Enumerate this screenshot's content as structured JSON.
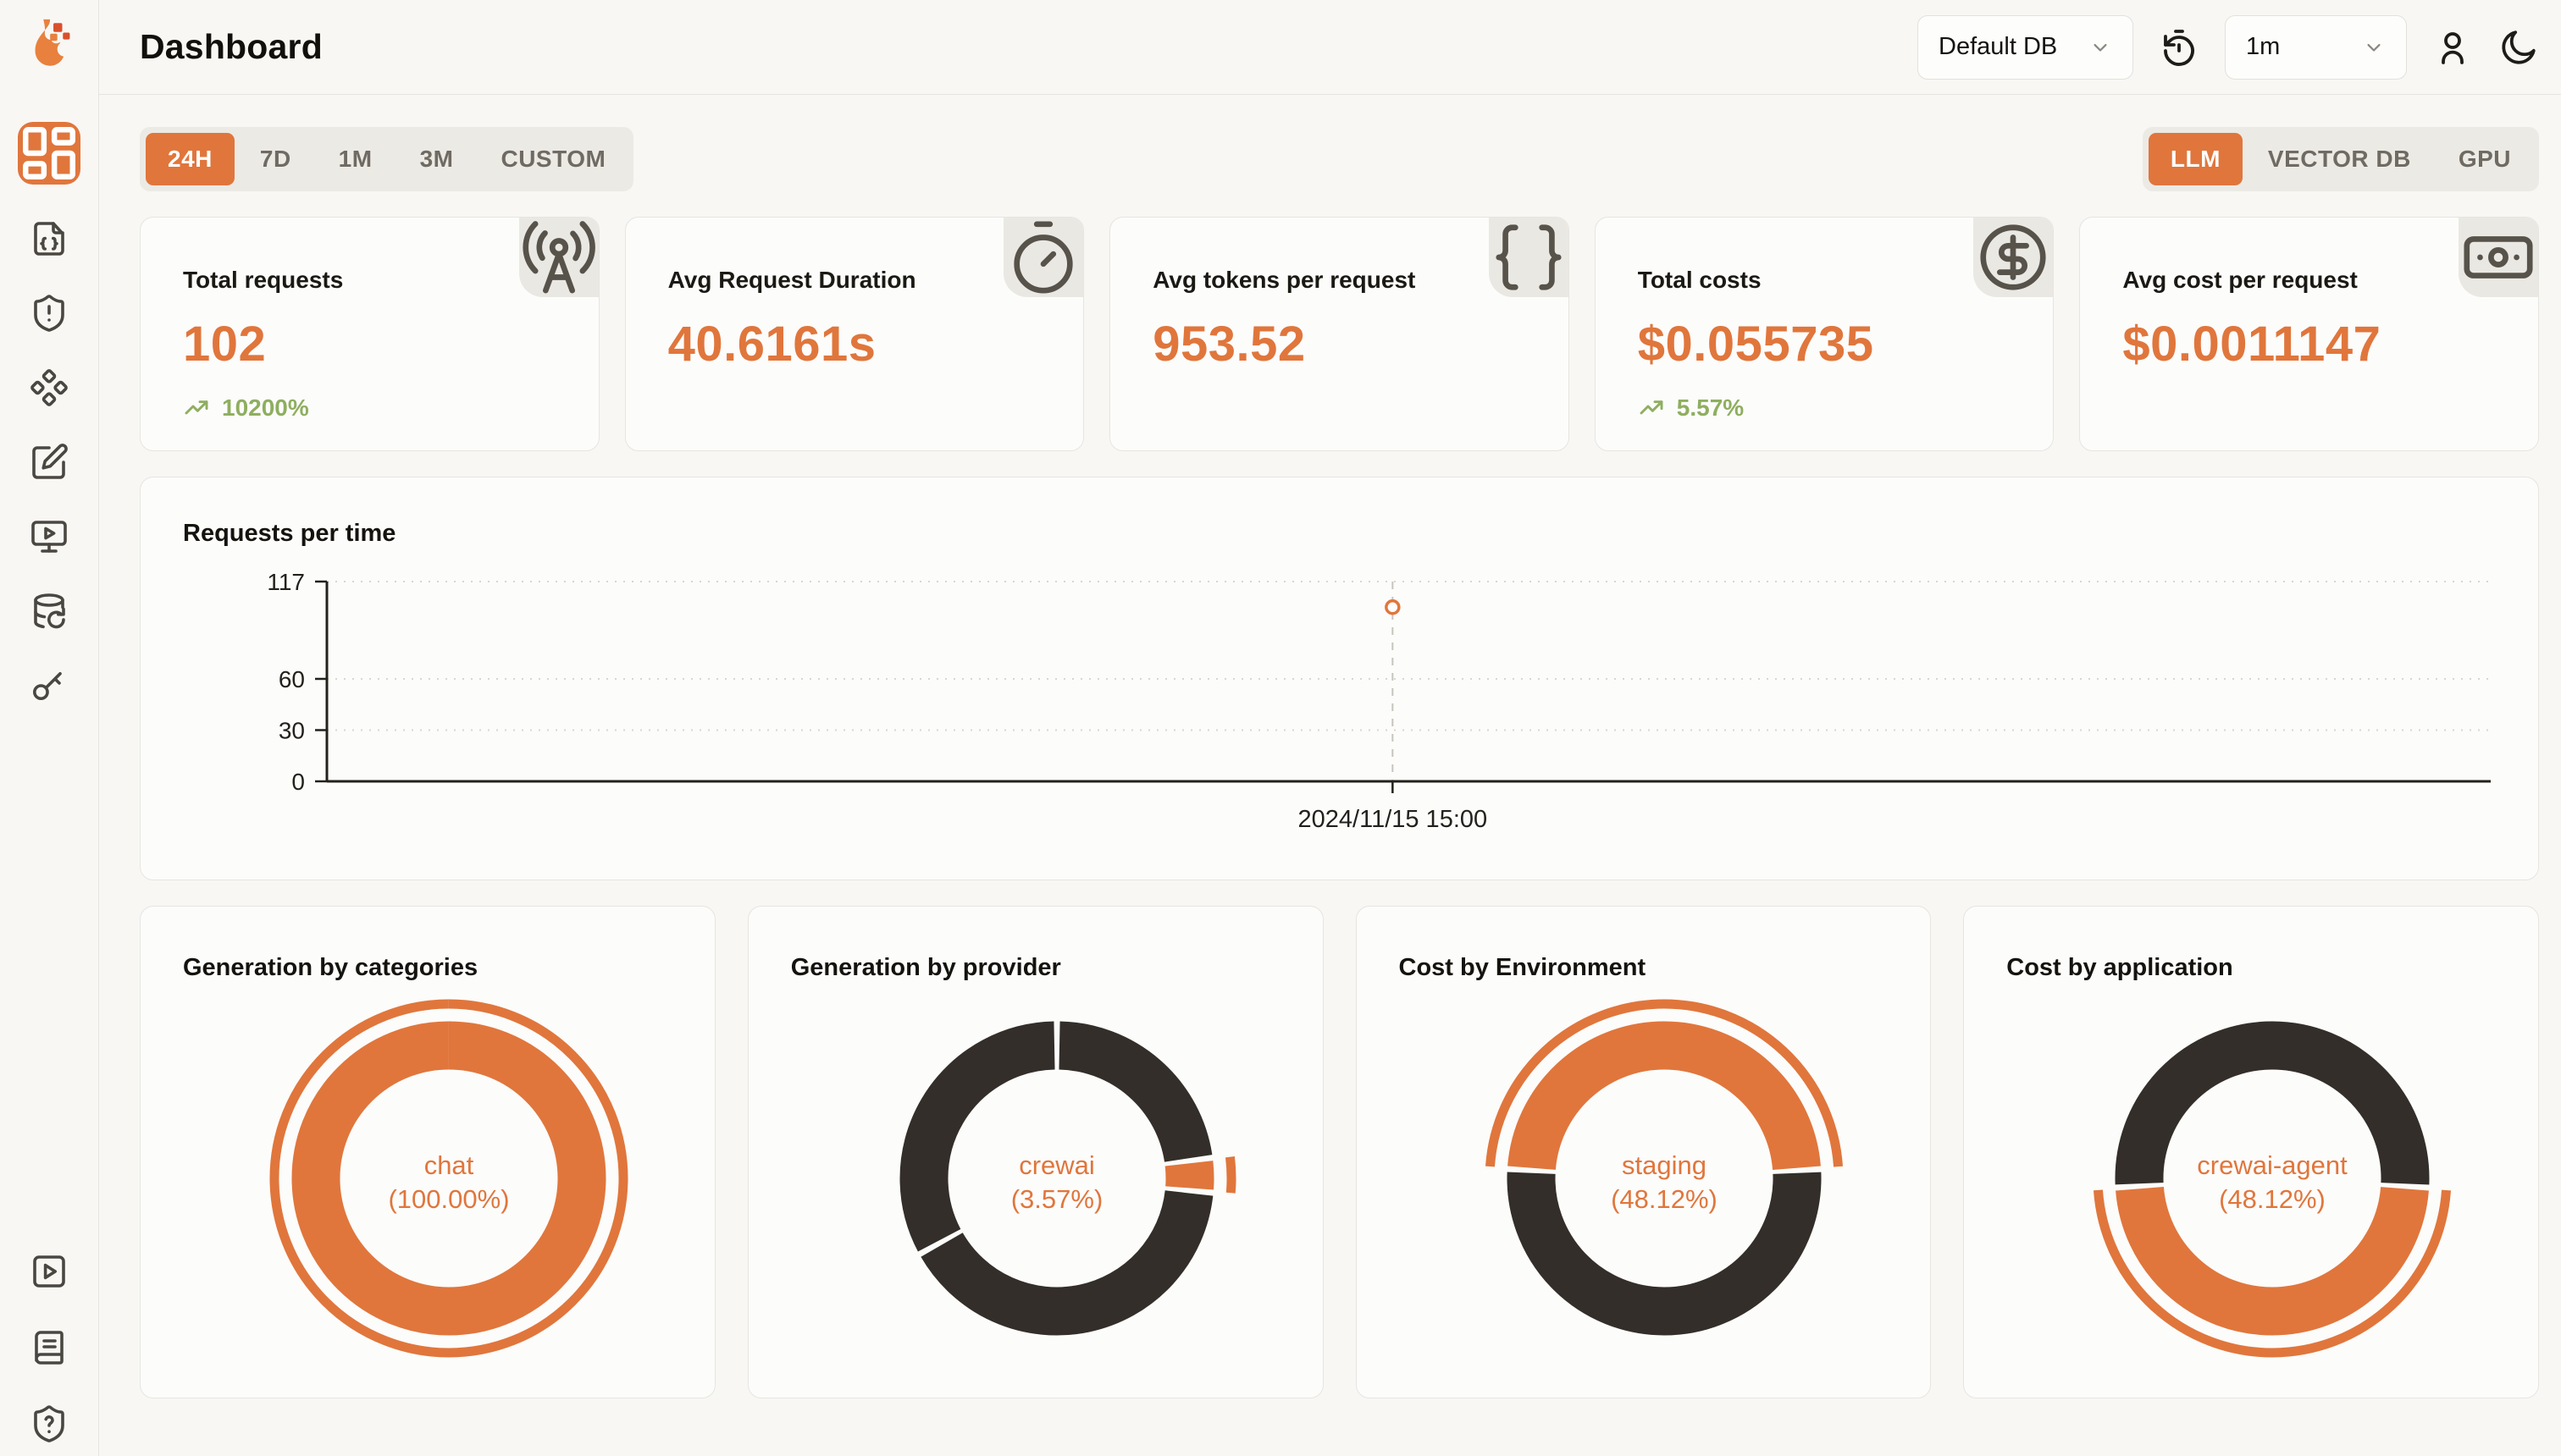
{
  "app": {
    "accent": "#E0763C",
    "dark_slice": "#332E29",
    "trend_green": "#8FAE60",
    "page_bg": "#F8F7F4",
    "card_bg": "#FCFCFB"
  },
  "header": {
    "title": "Dashboard",
    "db_select": {
      "value": "Default DB"
    },
    "interval_select": {
      "value": "1m"
    },
    "icons": [
      "timer-reset",
      "user",
      "moon"
    ]
  },
  "sidebar": {
    "logo": "flame-logo",
    "top_items": [
      {
        "icon": "layout-dashboard",
        "active": true
      },
      {
        "icon": "file-code"
      },
      {
        "icon": "shield-alert"
      },
      {
        "icon": "diamonds"
      },
      {
        "icon": "square-pen"
      },
      {
        "icon": "monitor-play"
      },
      {
        "icon": "database-restore"
      },
      {
        "icon": "key"
      }
    ],
    "bottom_items": [
      {
        "icon": "square-play"
      },
      {
        "icon": "book"
      },
      {
        "icon": "shield-question"
      }
    ]
  },
  "time_range_tabs": {
    "active": "24H",
    "items": [
      "24H",
      "7D",
      "1M",
      "3M",
      "CUSTOM"
    ]
  },
  "signal_tabs": {
    "active": "LLM",
    "items": [
      "LLM",
      "VECTOR DB",
      "GPU"
    ]
  },
  "stat_cards": [
    {
      "label": "Total requests",
      "value": "102",
      "trend": "10200%",
      "icon": "radio-tower"
    },
    {
      "label": "Avg Request Duration",
      "value": "40.6161s",
      "trend": "",
      "icon": "timer"
    },
    {
      "label": "Avg tokens per request",
      "value": "953.52",
      "trend": "",
      "icon": "braces"
    },
    {
      "label": "Total costs",
      "value": "$0.055735",
      "trend": "5.57%",
      "icon": "circle-dollar"
    },
    {
      "label": "Avg cost per request",
      "value": "$0.0011147",
      "trend": "",
      "icon": "banknote"
    }
  ],
  "chart_data": [
    {
      "id": "requests-per-time",
      "type": "line",
      "title": "Requests per time",
      "x": [
        "2024/11/15 15:00"
      ],
      "series": [
        {
          "name": "Requests",
          "values": [
            102
          ]
        }
      ],
      "ylim": [
        0,
        117
      ],
      "yticks": [
        0,
        30,
        60,
        117
      ],
      "grid": "dotted",
      "point_style": "hollow-circle",
      "point_x_fraction": 0.4925
    },
    {
      "id": "generation-by-categories",
      "type": "pie",
      "title": "Generation by categories",
      "center": {
        "line1": "chat",
        "line2": "(100.00%)"
      },
      "start_deg": 0,
      "slices": [
        {
          "label": "chat",
          "pct": 100,
          "color": "#E0763C",
          "highlight": true
        }
      ]
    },
    {
      "id": "generation-by-provider",
      "type": "pie",
      "title": "Generation by provider",
      "center": {
        "line1": "crewai",
        "line2": "(3.57%)"
      },
      "start_deg": 0,
      "slices": [
        {
          "label": "",
          "pct": 22.9,
          "color": "#332E29",
          "highlight": false
        },
        {
          "label": "crewai",
          "pct": 3.57,
          "color": "#E0763C",
          "highlight": true
        },
        {
          "label": "",
          "pct": 40.5,
          "color": "#332E29",
          "highlight": false
        },
        {
          "label": "",
          "pct": 33.03,
          "color": "#332E29",
          "highlight": false
        }
      ]
    },
    {
      "id": "cost-by-environment",
      "type": "pie",
      "title": "Cost by Environment",
      "center": {
        "line1": "staging",
        "line2": "(48.12%)"
      },
      "start_deg": 273.4,
      "slices": [
        {
          "label": "staging",
          "pct": 48.12,
          "color": "#E0763C",
          "highlight": true
        },
        {
          "label": "",
          "pct": 51.88,
          "color": "#332E29",
          "highlight": false
        }
      ]
    },
    {
      "id": "cost-by-application",
      "type": "pie",
      "title": "Cost by application",
      "center": {
        "line1": "crewai-agent",
        "line2": "(48.12%)"
      },
      "start_deg": 93.4,
      "slices": [
        {
          "label": "crewai-agent",
          "pct": 48.12,
          "color": "#E0763C",
          "highlight": true
        },
        {
          "label": "",
          "pct": 51.88,
          "color": "#332E29",
          "highlight": false
        }
      ]
    }
  ]
}
